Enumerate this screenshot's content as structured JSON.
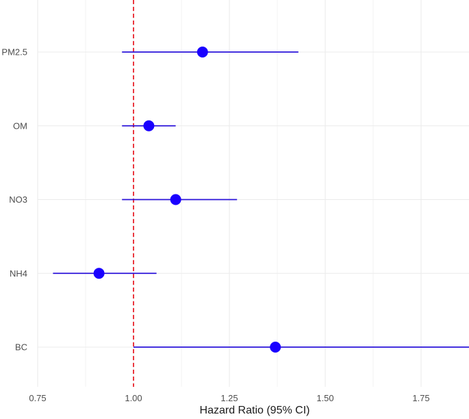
{
  "chart_data": {
    "type": "forest",
    "title": "",
    "xlabel": "Hazard Ratio (95% CI)",
    "ylabel": "",
    "xlim": [
      0.75,
      1.875
    ],
    "x_ticks": [
      0.75,
      1.0,
      1.25,
      1.5,
      1.75
    ],
    "x_tick_labels": [
      "0.75",
      "1.00",
      "1.25",
      "1.50",
      "1.75"
    ],
    "reference_line": 1.0,
    "grid": true,
    "legend": "none",
    "categories": [
      "PM2.5",
      "OM",
      "NO3",
      "NH4",
      "BC"
    ],
    "estimates": [
      1.18,
      1.04,
      1.11,
      0.91,
      1.37
    ],
    "lower_ci": [
      0.97,
      0.97,
      0.97,
      0.79,
      1.0
    ],
    "upper_ci": [
      1.43,
      1.11,
      1.27,
      1.06,
      1.875
    ],
    "colors": {
      "point": "#1a00ff",
      "ci_line": "#2a12d9",
      "reference": "#e8212a",
      "grid": "#ebebeb"
    }
  }
}
